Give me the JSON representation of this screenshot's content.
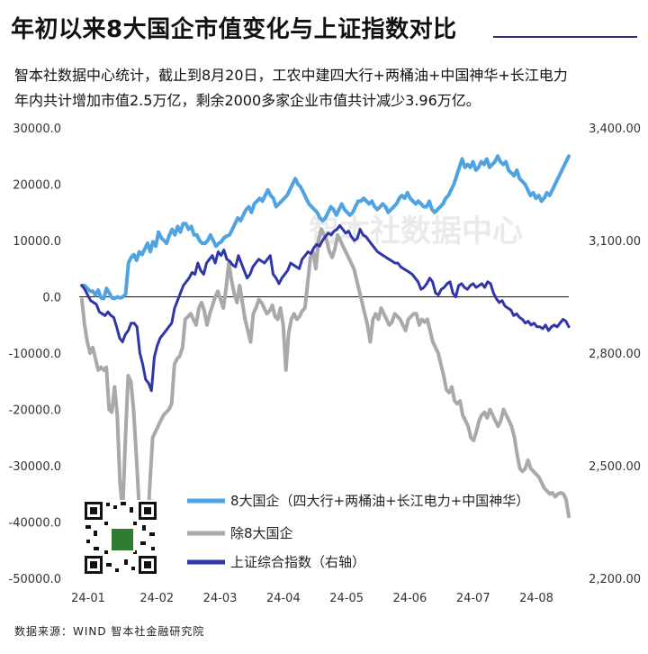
{
  "header": {
    "title": "年初以来8大国企市值变化与上证指数对比",
    "subtitle_line1": "智本社数据中心统计，截止到8月20日，工农中建四大行+两桶油+中国神华+长江电力",
    "subtitle_line2": "年内共计增加市值2.5万亿，剩余2000多家企业市值共计减少3.96万亿。"
  },
  "watermark": "智本社数据中心",
  "source": "数据来源：WIND 智本社金融研究院",
  "chart_data": {
    "type": "line",
    "x_ticks": [
      "24-01",
      "24-02",
      "24-03",
      "24-04",
      "24-05",
      "24-06",
      "24-07",
      "24-08"
    ],
    "left_axis": {
      "ticks": [
        "30000.0",
        "20000.0",
        "10000.0",
        "0.0",
        "-10000.0",
        "-20000.0",
        "-30000.0",
        "-40000.0",
        "-50000.0"
      ],
      "range": [
        -50000,
        30000
      ]
    },
    "right_axis": {
      "ticks": [
        "3,400.00",
        "3,100.00",
        "2,800.00",
        "2,500.00",
        "2,200.00"
      ],
      "range": [
        2200,
        3400
      ]
    },
    "colors": {
      "big8": "#4fa3e0",
      "others": "#a9a9a9",
      "index": "#2f36a8"
    },
    "series": [
      {
        "name": "8大国企（四大行+两桶油+长江电力+中国神华）",
        "axis": "left",
        "values": [
          2000,
          2000,
          1500,
          1000,
          1000,
          300,
          1200,
          -200,
          -300,
          1500,
          700,
          -200,
          -300,
          0,
          -200,
          0,
          500,
          6000,
          7000,
          7500,
          6500,
          8000,
          7500,
          8500,
          9500,
          8000,
          9800,
          9000,
          11500,
          10500,
          10000,
          9500,
          11000,
          12000,
          11000,
          12500,
          11500,
          13000,
          13000,
          12000,
          12500,
          11000,
          11000,
          10000,
          9500,
          9500,
          10000,
          11000,
          10000,
          9000,
          9500,
          9800,
          10500,
          10800,
          11000,
          12000,
          13000,
          14000,
          13500,
          14500,
          15500,
          16000,
          15000,
          16500,
          17000,
          17500,
          17000,
          18000,
          19000,
          18000,
          17500,
          16000,
          16500,
          17000,
          17500,
          18000,
          19000,
          20000,
          21000,
          20000,
          19500,
          18500,
          17500,
          16500,
          16000,
          15500,
          15000,
          14000,
          13500,
          14000,
          15000,
          16000,
          15500,
          14500,
          15500,
          16500,
          15500,
          15000,
          14500,
          15000,
          16000,
          17000,
          17000,
          17500,
          17000,
          16500,
          17000,
          16000,
          15500,
          16000,
          16500,
          16000,
          15000,
          15500,
          16000,
          16500,
          17500,
          18000,
          17500,
          18500,
          17500,
          17000,
          16500,
          17000,
          16500,
          16000,
          16000,
          17000,
          15500,
          15000,
          15500,
          16000,
          16500,
          17500,
          18000,
          19000,
          20000,
          21500,
          23000,
          24500,
          23000,
          23500,
          23000,
          24000,
          22500,
          23000,
          24000,
          23500,
          24500,
          23000,
          23500,
          24000,
          25000,
          24000,
          23500,
          24000,
          22500,
          22000,
          21500,
          22500,
          21000,
          20500,
          20000,
          19000,
          18000,
          18500,
          17500,
          18000,
          17000,
          17500,
          18500,
          18000,
          19000,
          20000,
          21000,
          22000,
          23000,
          24000,
          25000
        ]
      },
      {
        "name": "除8大国企",
        "axis": "left",
        "values": [
          -500,
          -5000,
          -8000,
          -10000,
          -9000,
          -11000,
          -13000,
          -12500,
          -13000,
          -12500,
          -20000,
          -20500,
          -16000,
          -21000,
          -33000,
          -38000,
          -25000,
          -14000,
          -15000,
          -20000,
          -28000,
          -37000,
          -45000,
          -40000,
          -43000,
          -33000,
          -25000,
          -24000,
          -23000,
          -22000,
          -21000,
          -20500,
          -20000,
          -19000,
          -12000,
          -11000,
          -10500,
          -9000,
          -4000,
          -3500,
          -3000,
          -4000,
          -5000,
          -2000,
          -1000,
          -2500,
          -5000,
          -3000,
          -1500,
          0,
          1000,
          -500,
          -2000,
          1500,
          6000,
          3000,
          500,
          -1000,
          2000,
          -1000,
          -4000,
          -6000,
          -8000,
          -3000,
          -2000,
          -500,
          -1000,
          -2000,
          -3000,
          -2500,
          -1500,
          -3500,
          -4000,
          -2000,
          -5000,
          -13000,
          -6500,
          -4000,
          -3000,
          -4000,
          -3500,
          -2500,
          -2000,
          2500,
          7000,
          8000,
          5000,
          10000,
          12000,
          11000,
          10000,
          8000,
          7000,
          8500,
          11000,
          10000,
          9000,
          8000,
          7000,
          6000,
          5000,
          3000,
          1000,
          -1000,
          -3000,
          -5000,
          -8000,
          -4000,
          -3000,
          -4000,
          -2000,
          -3000,
          -4000,
          -5000,
          -4500,
          -3000,
          -3500,
          -4000,
          -5000,
          -6000,
          -4000,
          -3500,
          -3000,
          -3000,
          -5000,
          -4000,
          -4500,
          -4000,
          -6000,
          -8000,
          -9000,
          -10000,
          -12000,
          -14000,
          -16500,
          -17000,
          -16000,
          -18500,
          -19000,
          -18500,
          -21000,
          -22000,
          -23000,
          -25000,
          -25500,
          -24000,
          -22000,
          -21000,
          -20500,
          -21500,
          -20000,
          -21000,
          -22000,
          -23000,
          -22000,
          -20000,
          -21000,
          -22000,
          -23000,
          -25000,
          -28000,
          -30500,
          -31000,
          -30500,
          -29000,
          -30500,
          -31000,
          -31500,
          -32000,
          -33000,
          -34000,
          -34500,
          -35000,
          -34800,
          -35500,
          -35000,
          -34800,
          -35000,
          -36000,
          -39000
        ]
      },
      {
        "name": "上证综合指数（右轴）",
        "axis": "right",
        "values": [
          2980,
          2970,
          2955,
          2940,
          2935,
          2930,
          2910,
          2905,
          2900,
          2910,
          2900,
          2895,
          2870,
          2840,
          2830,
          2850,
          2860,
          2880,
          2880,
          2870,
          2800,
          2770,
          2730,
          2720,
          2700,
          2790,
          2820,
          2840,
          2850,
          2860,
          2870,
          2880,
          2920,
          2940,
          2960,
          2980,
          2990,
          3000,
          3015,
          3010,
          3040,
          3020,
          3010,
          3040,
          3050,
          3060,
          3040,
          3070,
          3060,
          3075,
          3050,
          3045,
          3035,
          3030,
          3060,
          3040,
          3020,
          3000,
          3010,
          3030,
          3040,
          3050,
          3045,
          3040,
          3050,
          3060,
          3010,
          3000,
          2985,
          3000,
          3010,
          3020,
          3040,
          3035,
          3030,
          3025,
          3050,
          3060,
          3070,
          3065,
          3080,
          3090,
          3085,
          3100,
          3110,
          3120,
          3115,
          3125,
          3130,
          3140,
          3130,
          3120,
          3125,
          3110,
          3100,
          3105,
          3130,
          3115,
          3110,
          3100,
          3090,
          3080,
          3070,
          3065,
          3060,
          3055,
          3050,
          3045,
          3040,
          3040,
          3030,
          3025,
          3020,
          3015,
          3010,
          3000,
          2990,
          2970,
          2975,
          2985,
          3000,
          2990,
          2960,
          2955,
          2970,
          2975,
          2985,
          2990,
          2960,
          2950,
          2980,
          2985,
          2975,
          2970,
          2980,
          2985,
          2975,
          2980,
          2985,
          2975,
          2990,
          2985,
          2960,
          2945,
          2935,
          2940,
          2925,
          2920,
          2915,
          2900,
          2905,
          2895,
          2890,
          2880,
          2885,
          2875,
          2880,
          2870,
          2870,
          2865,
          2875,
          2860,
          2870,
          2875,
          2870,
          2880,
          2890,
          2885,
          2870
        ]
      }
    ]
  }
}
